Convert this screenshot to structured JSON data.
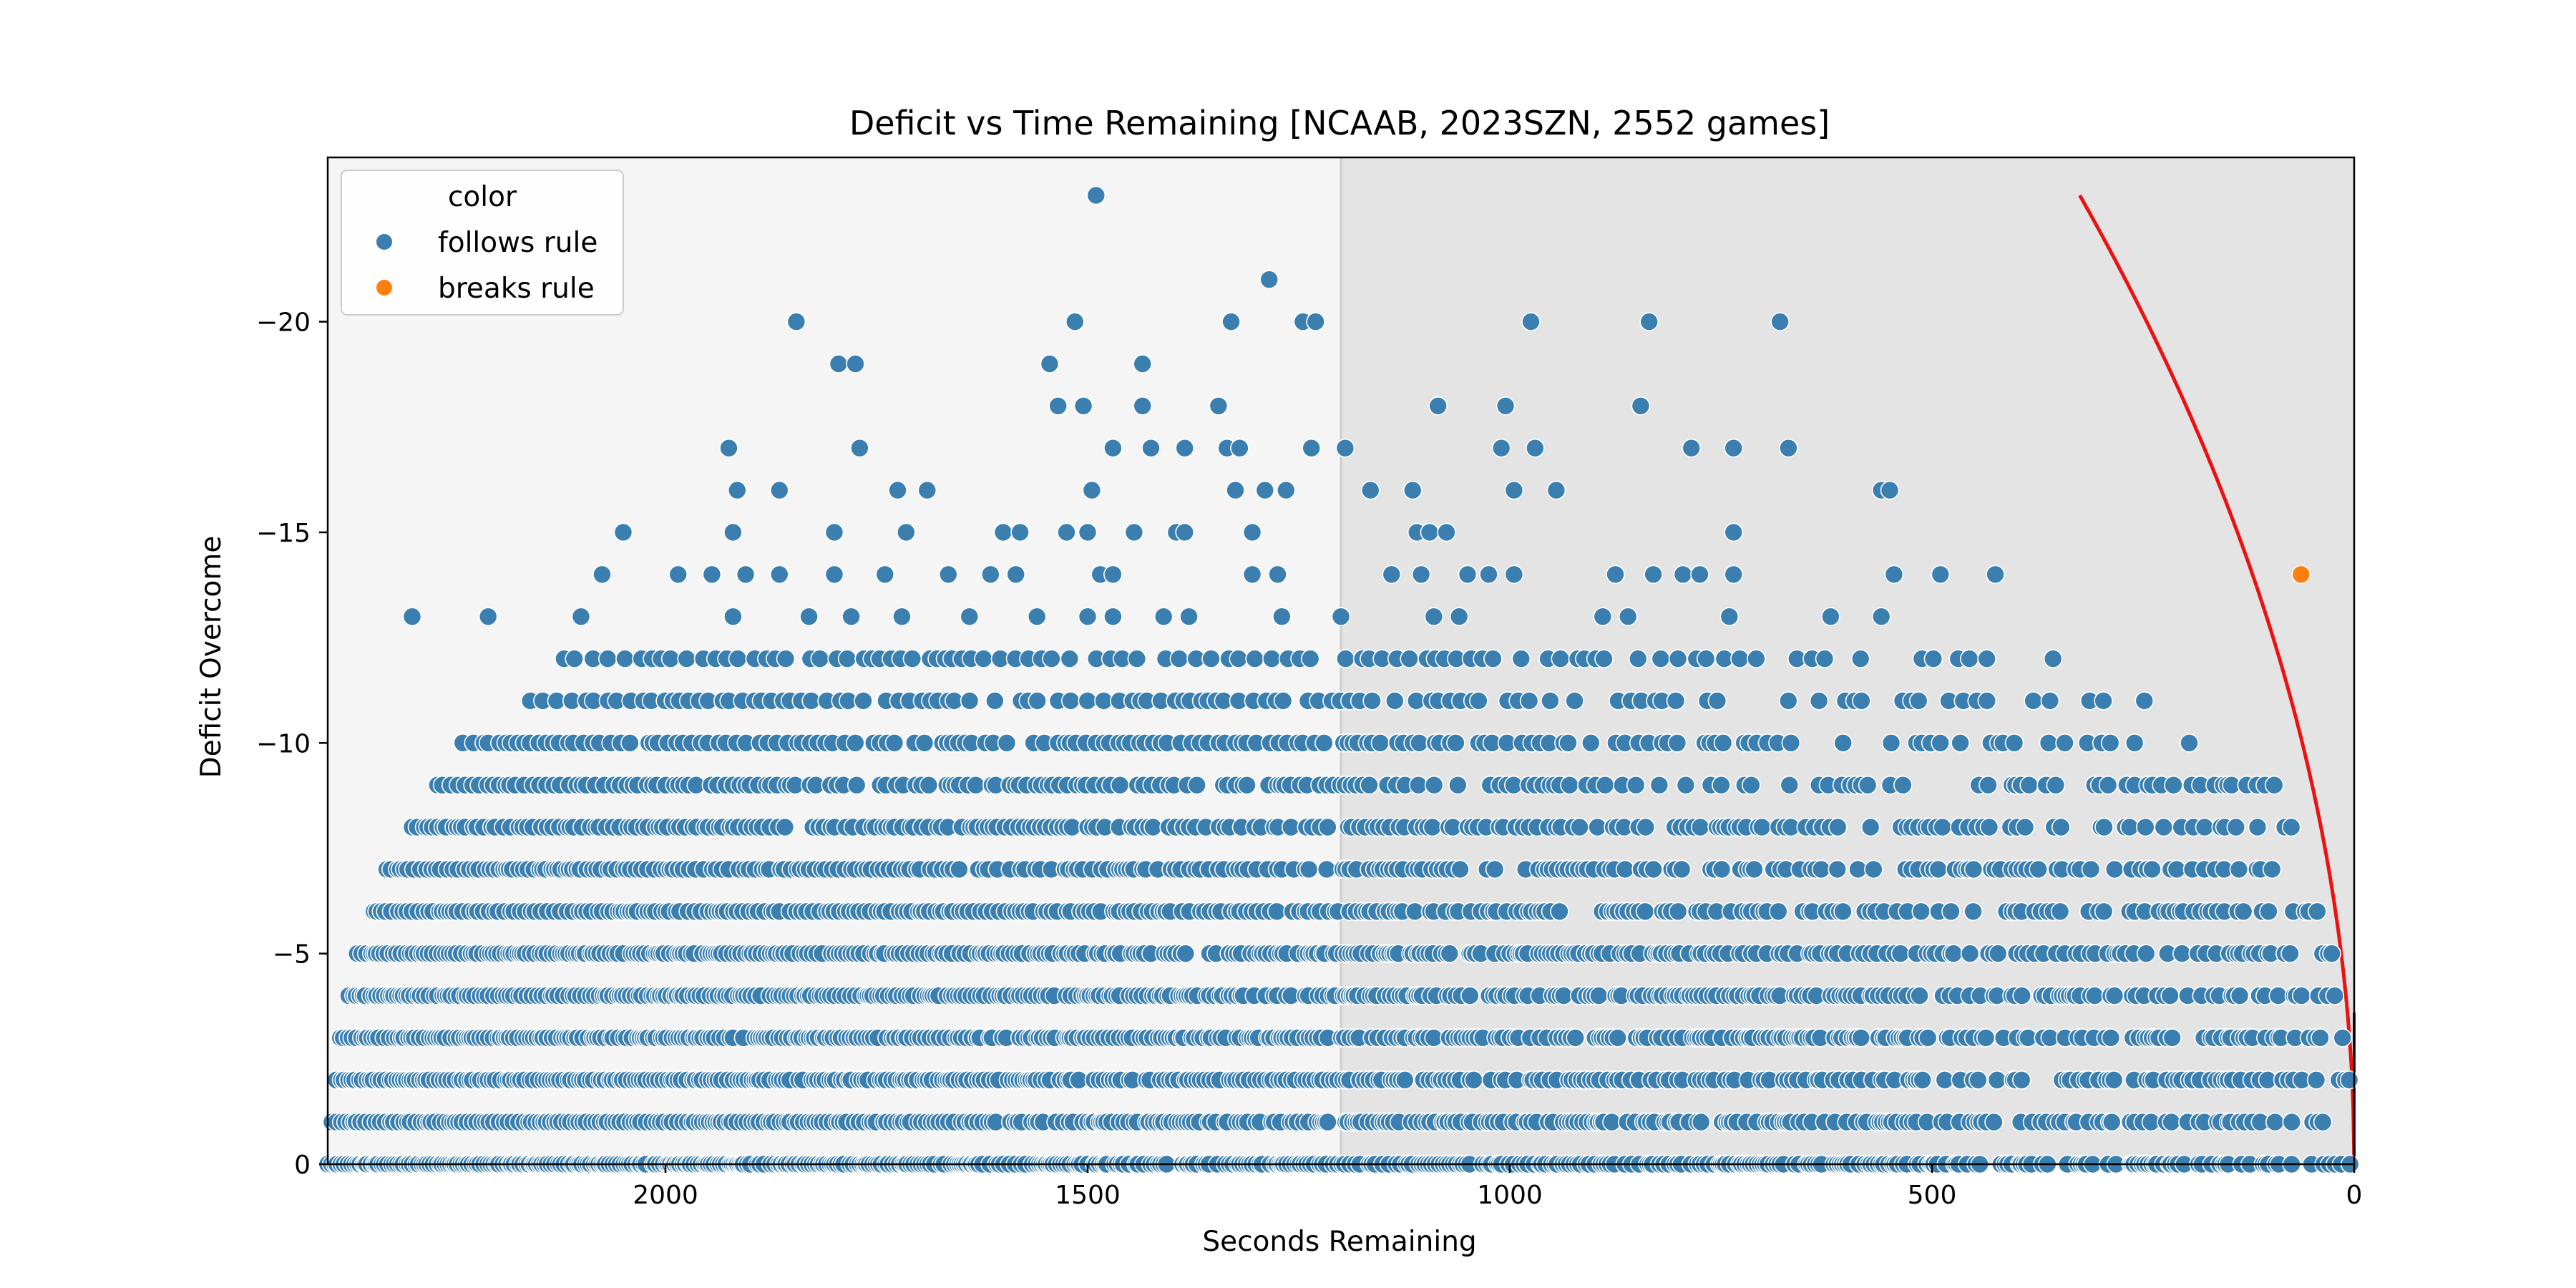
{
  "chart_data": {
    "type": "scatter",
    "title": "Deficit vs Time Remaining [NCAAB, 2023SZN, 2552 games]",
    "xlabel": "Seconds Remaining",
    "ylabel": "Deficit Overcome",
    "xlim": [
      2400,
      0
    ],
    "ylim": [
      0,
      -23.9
    ],
    "x_ticks": [
      2000,
      1500,
      1000,
      500,
      0
    ],
    "y_ticks": [
      0,
      -5,
      -10,
      -15,
      -20
    ],
    "x_tick_labels": [
      "2000",
      "1500",
      "1000",
      "500",
      "0"
    ],
    "y_tick_labels": [
      "0",
      "−5",
      "−10",
      "−15",
      "−20"
    ],
    "shaded_regions": [
      {
        "x_from": 2400,
        "x_to": 1200,
        "color": "#f5f5f5"
      },
      {
        "x_from": 1200,
        "x_to": 0,
        "color": "#e4e4e4"
      }
    ],
    "rule_curve": {
      "color": "#ee1111",
      "x_at_top": 325,
      "y_top": -23
    },
    "legend": {
      "title": "color",
      "placement": "top-left",
      "entries": [
        {
          "label": "follows rule",
          "color": "#3a7fb0"
        },
        {
          "label": "breaks rule",
          "color": "#ff7f0e"
        }
      ]
    },
    "series": [
      {
        "name": "follows rule",
        "color": "#3a7fb0",
        "points": [
          [
            1490,
            -23
          ],
          [
            1285,
            -21
          ],
          [
            1845,
            -20
          ],
          [
            1515,
            -20
          ],
          [
            1330,
            -20
          ],
          [
            1245,
            -20
          ],
          [
            1230,
            -20
          ],
          [
            975,
            -20
          ],
          [
            835,
            -20
          ],
          [
            680,
            -20
          ],
          [
            1795,
            -19
          ],
          [
            1775,
            -19
          ],
          [
            1545,
            -19
          ],
          [
            1435,
            -19
          ],
          [
            1535,
            -18
          ],
          [
            1505,
            -18
          ],
          [
            1435,
            -18
          ],
          [
            1345,
            -18
          ],
          [
            1085,
            -18
          ],
          [
            1005,
            -18
          ],
          [
            845,
            -18
          ],
          [
            1925,
            -17
          ],
          [
            1770,
            -17
          ],
          [
            1470,
            -17
          ],
          [
            1425,
            -17
          ],
          [
            1385,
            -17
          ],
          [
            1335,
            -17
          ],
          [
            1320,
            -17
          ],
          [
            1235,
            -17
          ],
          [
            1195,
            -17
          ],
          [
            1010,
            -17
          ],
          [
            970,
            -17
          ],
          [
            785,
            -17
          ],
          [
            735,
            -17
          ],
          [
            670,
            -17
          ],
          [
            1915,
            -16
          ],
          [
            1865,
            -16
          ],
          [
            1725,
            -16
          ],
          [
            1690,
            -16
          ],
          [
            1495,
            -16
          ],
          [
            1325,
            -16
          ],
          [
            1290,
            -16
          ],
          [
            1265,
            -16
          ],
          [
            1165,
            -16
          ],
          [
            1115,
            -16
          ],
          [
            995,
            -16
          ],
          [
            945,
            -16
          ],
          [
            560,
            -16
          ],
          [
            550,
            -16
          ],
          [
            2050,
            -15
          ],
          [
            1920,
            -15
          ],
          [
            1800,
            -15
          ],
          [
            1715,
            -15
          ],
          [
            1600,
            -15
          ],
          [
            1580,
            -15
          ],
          [
            1525,
            -15
          ],
          [
            1500,
            -15
          ],
          [
            1445,
            -15
          ],
          [
            1395,
            -15
          ],
          [
            1385,
            -15
          ],
          [
            1305,
            -15
          ],
          [
            1110,
            -15
          ],
          [
            1095,
            -15
          ],
          [
            1075,
            -15
          ],
          [
            735,
            -15
          ],
          [
            2075,
            -14
          ],
          [
            1985,
            -14
          ],
          [
            1945,
            -14
          ],
          [
            1905,
            -14
          ],
          [
            1865,
            -14
          ],
          [
            1800,
            -14
          ],
          [
            1740,
            -14
          ],
          [
            1665,
            -14
          ],
          [
            1615,
            -14
          ],
          [
            1585,
            -14
          ],
          [
            1485,
            -14
          ],
          [
            1470,
            -14
          ],
          [
            1305,
            -14
          ],
          [
            1275,
            -14
          ],
          [
            1140,
            -14
          ],
          [
            1105,
            -14
          ],
          [
            1050,
            -14
          ],
          [
            1025,
            -14
          ],
          [
            995,
            -14
          ],
          [
            875,
            -14
          ],
          [
            830,
            -14
          ],
          [
            795,
            -14
          ],
          [
            775,
            -14
          ],
          [
            735,
            -14
          ],
          [
            545,
            -14
          ],
          [
            490,
            -14
          ],
          [
            425,
            -14
          ],
          [
            2300,
            -13
          ],
          [
            2210,
            -13
          ],
          [
            2100,
            -13
          ],
          [
            1920,
            -13
          ],
          [
            1830,
            -13
          ],
          [
            1780,
            -13
          ],
          [
            1720,
            -13
          ],
          [
            1640,
            -13
          ],
          [
            1560,
            -13
          ],
          [
            1500,
            -13
          ],
          [
            1470,
            -13
          ],
          [
            1410,
            -13
          ],
          [
            1380,
            -13
          ],
          [
            1270,
            -13
          ],
          [
            1200,
            -13
          ],
          [
            1090,
            -13
          ],
          [
            1060,
            -13
          ],
          [
            890,
            -13
          ],
          [
            860,
            -13
          ],
          [
            740,
            -13
          ],
          [
            620,
            -13
          ],
          [
            560,
            -13
          ]
        ],
        "dense_bands": [
          {
            "y": -12,
            "x_from": 2120,
            "x_to": 310,
            "spacing": 13
          },
          {
            "y": -11,
            "x_from": 2160,
            "x_to": 240,
            "spacing": 11
          },
          {
            "y": -10,
            "x_from": 2240,
            "x_to": 185,
            "spacing": 8
          },
          {
            "y": -9,
            "x_from": 2270,
            "x_to": 90,
            "spacing": 7
          },
          {
            "y": -8,
            "x_from": 2300,
            "x_to": 65,
            "spacing": 6
          },
          {
            "y": -7,
            "x_from": 2330,
            "x_to": 75,
            "spacing": 5
          },
          {
            "y": -6,
            "x_from": 2345,
            "x_to": 35,
            "spacing": 5
          },
          {
            "y": -5,
            "x_from": 2365,
            "x_to": 25,
            "spacing": 4
          },
          {
            "y": -4,
            "x_from": 2375,
            "x_to": 10,
            "spacing": 4
          },
          {
            "y": -3,
            "x_from": 2385,
            "x_to": 5,
            "spacing": 4
          },
          {
            "y": -2,
            "x_from": 2390,
            "x_to": 3,
            "spacing": 4
          },
          {
            "y": -1,
            "x_from": 2395,
            "x_to": 2,
            "spacing": 4
          },
          {
            "y": 0,
            "x_from": 2400,
            "x_to": 0,
            "spacing": 3
          }
        ]
      },
      {
        "name": "breaks rule",
        "color": "#ff7f0e",
        "points": [
          [
            63,
            -14
          ]
        ]
      }
    ]
  }
}
